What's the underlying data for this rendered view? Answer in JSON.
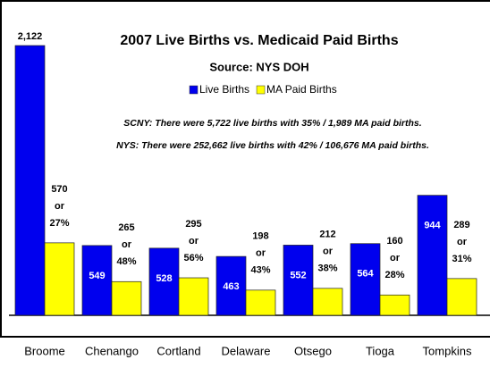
{
  "chart_data": {
    "type": "bar",
    "title": "2007 Live Births  vs. Medicaid Paid Births",
    "subtitle": "Source:  NYS DOH",
    "annotations": [
      "SCNY:  There were 5,722 live births with 35% / 1,989 MA paid births.",
      "NYS:  There were 252,662 live births with 42% / 106,676 MA paid births."
    ],
    "categories": [
      "Broome",
      "Chenango",
      "Cortland",
      "Delaware",
      "Otsego",
      "Tioga",
      "Tompkins"
    ],
    "series": [
      {
        "name": "Live Births",
        "color": "#0000ee",
        "values": [
          2122,
          549,
          528,
          463,
          552,
          564,
          944
        ],
        "value_labels": [
          "2,122",
          "549",
          "528",
          "463",
          "552",
          "564",
          "944"
        ]
      },
      {
        "name": "MA Paid Births",
        "color": "#ffff00",
        "values": [
          570,
          265,
          295,
          198,
          212,
          160,
          289
        ],
        "value_labels": [
          [
            "570",
            "or",
            "27%"
          ],
          [
            "265",
            "or",
            "48%"
          ],
          [
            "295",
            "or",
            "56%"
          ],
          [
            "198",
            "or",
            "43%"
          ],
          [
            "212",
            "or",
            "38%"
          ],
          [
            "160",
            "or",
            "28%"
          ],
          [
            "289",
            "or",
            "31%"
          ]
        ]
      }
    ]
  }
}
